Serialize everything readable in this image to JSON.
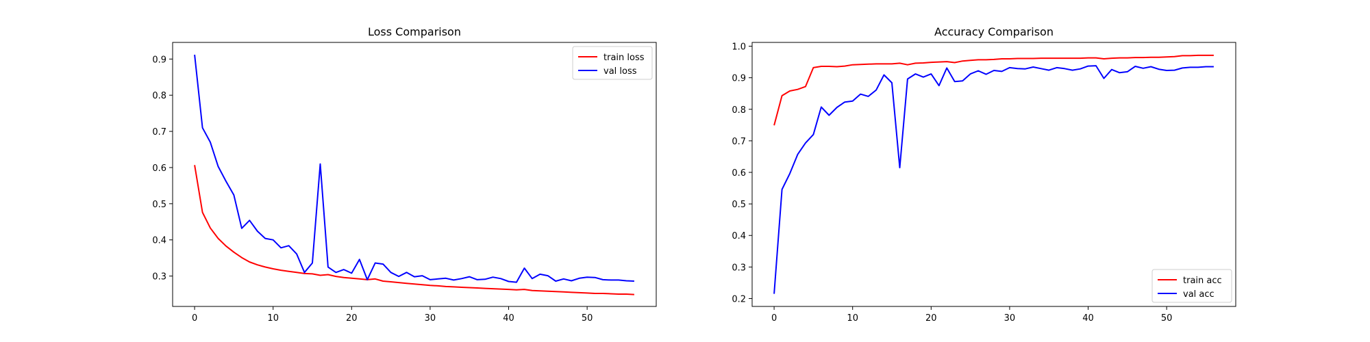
{
  "chart_data": [
    {
      "type": "line",
      "title": "Loss Comparison",
      "xlabel": "",
      "ylabel": "",
      "xlim": [
        -2.8,
        58.8
      ],
      "ylim": [
        0.216,
        0.946
      ],
      "xticks": [
        0,
        10,
        20,
        30,
        40,
        50
      ],
      "yticks": [
        0.3,
        0.4,
        0.5,
        0.6,
        0.7,
        0.8,
        0.9
      ],
      "grid": false,
      "legend": "top-right",
      "x": [
        0,
        1,
        2,
        3,
        4,
        5,
        6,
        7,
        8,
        9,
        10,
        11,
        12,
        13,
        14,
        15,
        16,
        17,
        18,
        19,
        20,
        21,
        22,
        23,
        24,
        25,
        26,
        27,
        28,
        29,
        30,
        31,
        32,
        33,
        34,
        35,
        36,
        37,
        38,
        39,
        40,
        41,
        42,
        43,
        44,
        45,
        46,
        47,
        48,
        49,
        50,
        51,
        52,
        53,
        54,
        55,
        56
      ],
      "series": [
        {
          "name": "train loss",
          "color": "#ff0000",
          "values": [
            0.607,
            0.476,
            0.433,
            0.404,
            0.383,
            0.366,
            0.351,
            0.339,
            0.331,
            0.325,
            0.32,
            0.316,
            0.313,
            0.31,
            0.307,
            0.306,
            0.302,
            0.304,
            0.299,
            0.296,
            0.294,
            0.292,
            0.29,
            0.292,
            0.286,
            0.284,
            0.282,
            0.28,
            0.278,
            0.276,
            0.274,
            0.273,
            0.271,
            0.27,
            0.269,
            0.268,
            0.267,
            0.266,
            0.265,
            0.264,
            0.263,
            0.262,
            0.263,
            0.26,
            0.259,
            0.258,
            0.257,
            0.256,
            0.255,
            0.254,
            0.253,
            0.252,
            0.252,
            0.251,
            0.25,
            0.25,
            0.249
          ]
        },
        {
          "name": "val loss",
          "color": "#0000ff",
          "values": [
            0.912,
            0.71,
            0.67,
            0.603,
            0.562,
            0.524,
            0.432,
            0.454,
            0.424,
            0.404,
            0.4,
            0.378,
            0.384,
            0.361,
            0.31,
            0.336,
            0.61,
            0.325,
            0.31,
            0.318,
            0.308,
            0.346,
            0.29,
            0.336,
            0.333,
            0.31,
            0.299,
            0.31,
            0.298,
            0.301,
            0.29,
            0.292,
            0.294,
            0.289,
            0.293,
            0.298,
            0.29,
            0.291,
            0.297,
            0.293,
            0.285,
            0.283,
            0.322,
            0.293,
            0.305,
            0.301,
            0.286,
            0.292,
            0.287,
            0.294,
            0.297,
            0.296,
            0.29,
            0.289,
            0.289,
            0.287,
            0.286
          ]
        }
      ]
    },
    {
      "type": "line",
      "title": "Accuracy Comparison",
      "xlabel": "",
      "ylabel": "",
      "xlim": [
        -2.8,
        58.8
      ],
      "ylim": [
        0.175,
        1.012
      ],
      "xticks": [
        0,
        10,
        20,
        30,
        40,
        50
      ],
      "yticks": [
        0.2,
        0.3,
        0.4,
        0.5,
        0.6,
        0.7,
        0.8,
        0.9,
        1.0
      ],
      "ytick_labels": [
        "0.2",
        "0.3",
        "0.4",
        "0.5",
        "0.6",
        "0.7",
        "0.8",
        "0.9",
        "1.0"
      ],
      "grid": false,
      "legend": "bottom-right",
      "x": [
        0,
        1,
        2,
        3,
        4,
        5,
        6,
        7,
        8,
        9,
        10,
        11,
        12,
        13,
        14,
        15,
        16,
        17,
        18,
        19,
        20,
        21,
        22,
        23,
        24,
        25,
        26,
        27,
        28,
        29,
        30,
        31,
        32,
        33,
        34,
        35,
        36,
        37,
        38,
        39,
        40,
        41,
        42,
        43,
        44,
        45,
        46,
        47,
        48,
        49,
        50,
        51,
        52,
        53,
        54,
        55,
        56
      ],
      "series": [
        {
          "name": "train acc",
          "color": "#ff0000",
          "values": [
            0.749,
            0.843,
            0.858,
            0.863,
            0.872,
            0.932,
            0.936,
            0.936,
            0.935,
            0.937,
            0.941,
            0.942,
            0.943,
            0.944,
            0.944,
            0.944,
            0.946,
            0.941,
            0.946,
            0.947,
            0.949,
            0.95,
            0.951,
            0.948,
            0.953,
            0.955,
            0.957,
            0.957,
            0.958,
            0.96,
            0.96,
            0.961,
            0.961,
            0.961,
            0.962,
            0.962,
            0.962,
            0.962,
            0.962,
            0.962,
            0.963,
            0.963,
            0.96,
            0.962,
            0.963,
            0.963,
            0.964,
            0.964,
            0.965,
            0.965,
            0.966,
            0.967,
            0.97,
            0.97,
            0.971,
            0.971,
            0.971
          ]
        },
        {
          "name": "val acc",
          "color": "#0000ff",
          "values": [
            0.215,
            0.546,
            0.596,
            0.657,
            0.693,
            0.72,
            0.807,
            0.781,
            0.806,
            0.823,
            0.826,
            0.848,
            0.841,
            0.861,
            0.909,
            0.884,
            0.615,
            0.896,
            0.912,
            0.902,
            0.912,
            0.875,
            0.931,
            0.888,
            0.89,
            0.912,
            0.922,
            0.911,
            0.923,
            0.92,
            0.932,
            0.929,
            0.928,
            0.934,
            0.929,
            0.924,
            0.932,
            0.929,
            0.924,
            0.928,
            0.937,
            0.938,
            0.898,
            0.926,
            0.916,
            0.919,
            0.936,
            0.93,
            0.935,
            0.927,
            0.923,
            0.924,
            0.931,
            0.933,
            0.933,
            0.935,
            0.935
          ]
        }
      ]
    }
  ]
}
